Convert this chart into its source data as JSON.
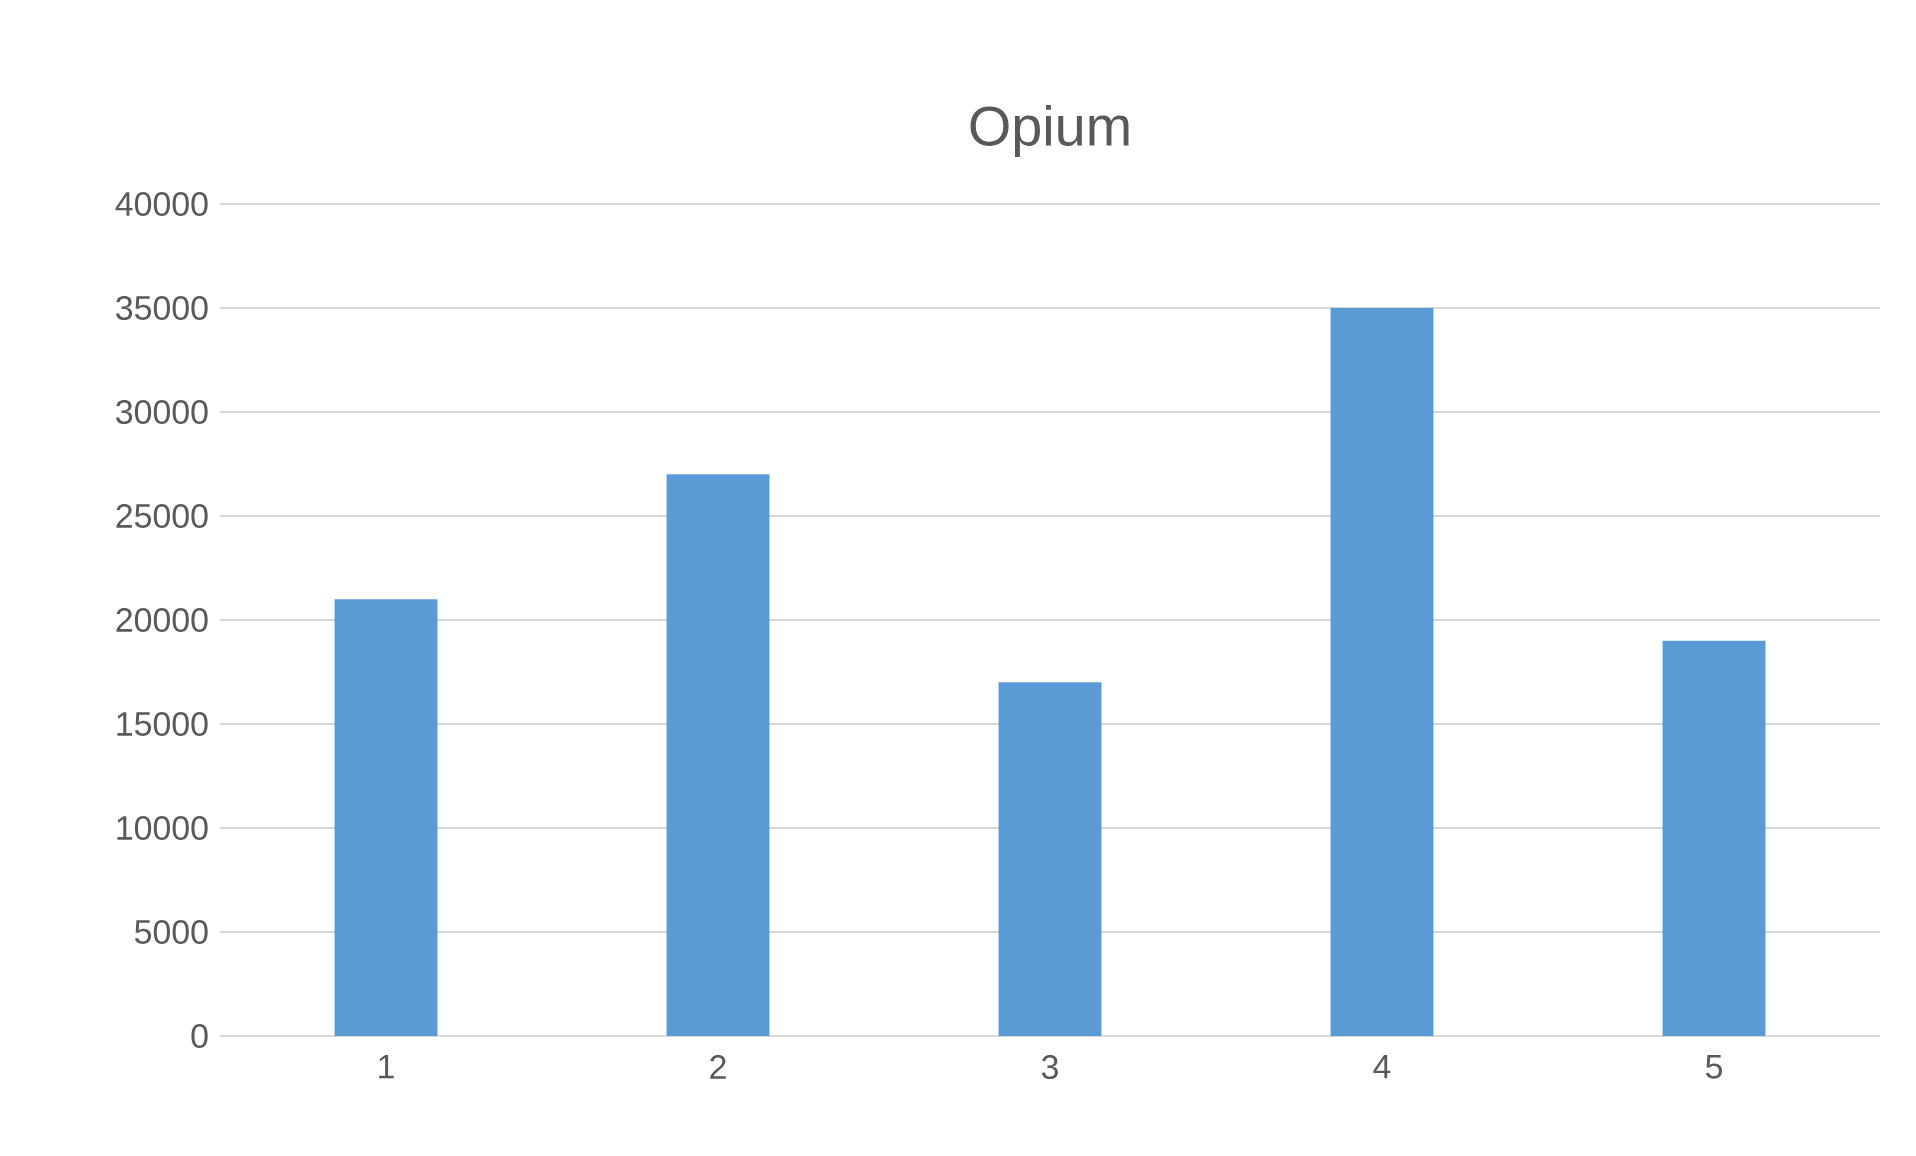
{
  "chart_data": {
    "type": "bar",
    "title": "Opium",
    "categories": [
      "1",
      "2",
      "3",
      "4",
      "5"
    ],
    "values": [
      21000,
      27000,
      17000,
      35000,
      19000
    ],
    "color": "#5b9bd5",
    "ylim": [
      0,
      40000
    ],
    "yticks": [
      0,
      5000,
      10000,
      15000,
      20000,
      25000,
      30000,
      35000,
      40000
    ],
    "grid": "y"
  }
}
